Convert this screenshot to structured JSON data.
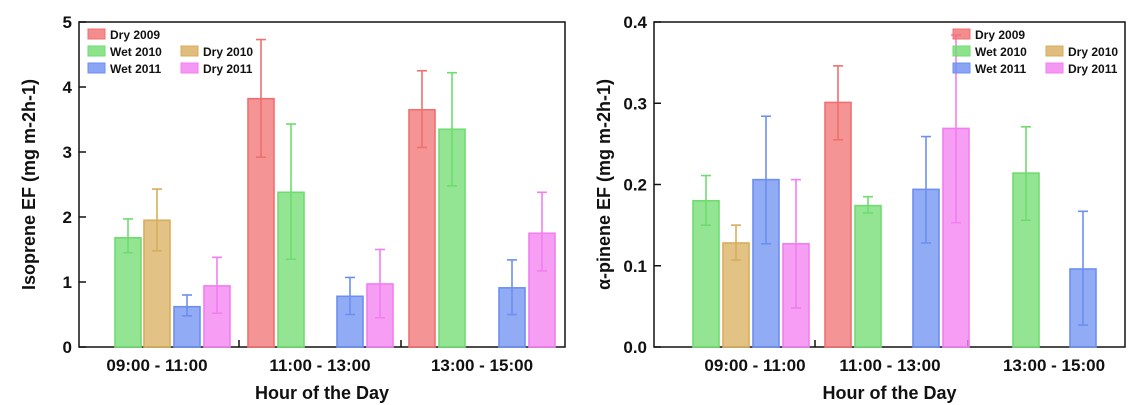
{
  "colors": {
    "Dry 2009": "#f07070",
    "Wet 2010": "#6fdc6f",
    "Dry 2010": "#d8ad5c",
    "Wet 2011": "#6c8ff0",
    "Dry 2011": "#f27ef0"
  },
  "chart_data": [
    {
      "type": "bar",
      "xlabel": "Hour of the Day",
      "ylabel": "Isoprene EF (mg m-2h-1)",
      "ylim": [
        0,
        5
      ],
      "yticks": [
        "0",
        "1",
        "2",
        "3",
        "4",
        "5"
      ],
      "categories": [
        "09:00 - 11:00",
        "11:00 - 13:00",
        "13:00 - 15:00"
      ],
      "legend": [
        "Dry 2009",
        "Wet 2010",
        "Dry 2010",
        "Wet 2011",
        "Dry 2011"
      ],
      "legend_position": "top-left",
      "bars": [
        {
          "category": "09:00 - 11:00",
          "series": "Wet 2010",
          "value": 1.68,
          "err_low": 1.45,
          "err_high": 1.97
        },
        {
          "category": "09:00 - 11:00",
          "series": "Dry 2010",
          "value": 1.95,
          "err_low": 1.48,
          "err_high": 2.43
        },
        {
          "category": "09:00 - 11:00",
          "series": "Wet 2011",
          "value": 0.62,
          "err_low": 0.48,
          "err_high": 0.8
        },
        {
          "category": "09:00 - 11:00",
          "series": "Dry 2011",
          "value": 0.94,
          "err_low": 0.52,
          "err_high": 1.38
        },
        {
          "category": "11:00 - 13:00",
          "series": "Dry 2009",
          "value": 3.82,
          "err_low": 2.92,
          "err_high": 4.73
        },
        {
          "category": "11:00 - 13:00",
          "series": "Wet 2010",
          "value": 2.38,
          "err_low": 1.35,
          "err_high": 3.43
        },
        {
          "category": "11:00 - 13:00",
          "series": "Wet 2011",
          "value": 0.78,
          "err_low": 0.5,
          "err_high": 1.07
        },
        {
          "category": "11:00 - 13:00",
          "series": "Dry 2011",
          "value": 0.97,
          "err_low": 0.45,
          "err_high": 1.5
        },
        {
          "category": "13:00 - 15:00",
          "series": "Dry 2009",
          "value": 3.65,
          "err_low": 3.07,
          "err_high": 4.25
        },
        {
          "category": "13:00 - 15:00",
          "series": "Wet 2010",
          "value": 3.35,
          "err_low": 2.48,
          "err_high": 4.22
        },
        {
          "category": "13:00 - 15:00",
          "series": "Wet 2011",
          "value": 0.91,
          "err_low": 0.5,
          "err_high": 1.34
        },
        {
          "category": "13:00 - 15:00",
          "series": "Dry 2011",
          "value": 1.75,
          "err_low": 1.17,
          "err_high": 2.38
        }
      ]
    },
    {
      "type": "bar",
      "xlabel": "Hour of the Day",
      "ylabel": "α-pinene EF (mg m-2h-1)",
      "ylim": [
        0,
        0.4
      ],
      "yticks": [
        "0.0",
        "0.1",
        "0.2",
        "0.3",
        "0.4"
      ],
      "categories": [
        "09:00 - 11:00",
        "11:00 - 13:00",
        "13:00 - 15:00"
      ],
      "legend": [
        "Dry 2009",
        "Wet 2010",
        "Dry 2010",
        "Wet 2011",
        "Dry 2011"
      ],
      "legend_position": "top-right",
      "bars": [
        {
          "category": "09:00 - 11:00",
          "series": "Wet 2010",
          "value": 0.18,
          "err_low": 0.15,
          "err_high": 0.211
        },
        {
          "category": "09:00 - 11:00",
          "series": "Dry 2010",
          "value": 0.128,
          "err_low": 0.107,
          "err_high": 0.15
        },
        {
          "category": "09:00 - 11:00",
          "series": "Wet 2011",
          "value": 0.206,
          "err_low": 0.127,
          "err_high": 0.284
        },
        {
          "category": "09:00 - 11:00",
          "series": "Dry 2011",
          "value": 0.127,
          "err_low": 0.048,
          "err_high": 0.206
        },
        {
          "category": "11:00 - 13:00",
          "series": "Dry 2009",
          "value": 0.301,
          "err_low": 0.255,
          "err_high": 0.346
        },
        {
          "category": "11:00 - 13:00",
          "series": "Wet 2010",
          "value": 0.174,
          "err_low": 0.165,
          "err_high": 0.185
        },
        {
          "category": "11:00 - 13:00",
          "series": "Wet 2011",
          "value": 0.194,
          "err_low": 0.128,
          "err_high": 0.259
        },
        {
          "category": "11:00 - 13:00",
          "series": "Dry 2011",
          "value": 0.269,
          "err_low": 0.153,
          "err_high": 0.384
        },
        {
          "category": "13:00 - 15:00",
          "series": "Wet 2010",
          "value": 0.214,
          "err_low": 0.156,
          "err_high": 0.271
        },
        {
          "category": "13:00 - 15:00",
          "series": "Wet 2011",
          "value": 0.096,
          "err_low": 0.027,
          "err_high": 0.167
        }
      ]
    }
  ]
}
